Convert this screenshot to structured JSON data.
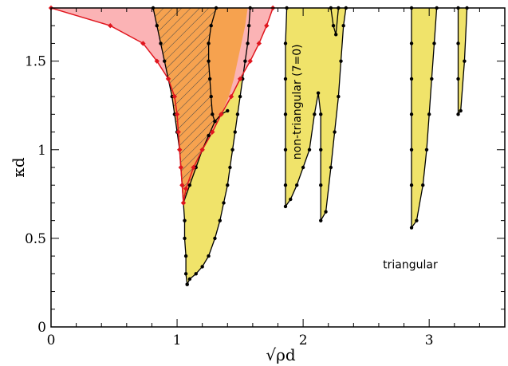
{
  "chart_data": {
    "type": "area",
    "xlabel": "√ρd",
    "ylabel": "κd",
    "xlim": [
      0,
      3.6
    ],
    "ylim": [
      0,
      1.8
    ],
    "x_ticks": [
      {
        "value": 0,
        "label": "0"
      },
      {
        "value": 1,
        "label": "1"
      },
      {
        "value": 2,
        "label": "2"
      },
      {
        "value": 3,
        "label": "3"
      }
    ],
    "y_ticks": [
      {
        "value": 0,
        "label": "0"
      },
      {
        "value": 0.5,
        "label": "0.5"
      },
      {
        "value": 1,
        "label": "1"
      },
      {
        "value": 1.5,
        "label": "1.5"
      }
    ],
    "x_minor_step": 0.2,
    "y_minor_step": 0.1,
    "grid": false,
    "colors": {
      "yellow": "#f0e36a",
      "orange": "#f6a24f",
      "pink": "#fbb3b5",
      "red": "#e0161e",
      "black": "#000000",
      "hatch": "#4a4a4a"
    },
    "annotations": [
      {
        "text": "non-triangular (7=0)",
        "x": 1.98,
        "y": 1.27,
        "rotation": -90
      },
      {
        "text": "triangular",
        "x": 2.85,
        "y": 0.33,
        "rotation": 0
      }
    ],
    "yellow_regions": [
      {
        "name": "lobe-1",
        "points": [
          [
            0.81,
            1.8
          ],
          [
            0.84,
            1.7
          ],
          [
            0.87,
            1.6
          ],
          [
            0.9,
            1.5
          ],
          [
            0.93,
            1.4
          ],
          [
            0.96,
            1.3
          ],
          [
            0.98,
            1.2
          ],
          [
            1.0,
            1.1
          ],
          [
            1.02,
            1.0
          ],
          [
            1.03,
            0.9
          ],
          [
            1.04,
            0.8
          ],
          [
            1.05,
            0.7
          ],
          [
            1.06,
            0.6
          ],
          [
            1.06,
            0.5
          ],
          [
            1.07,
            0.4
          ],
          [
            1.07,
            0.3
          ],
          [
            1.08,
            0.24
          ],
          [
            1.1,
            0.27
          ],
          [
            1.15,
            0.3
          ],
          [
            1.2,
            0.34
          ],
          [
            1.25,
            0.4
          ],
          [
            1.3,
            0.5
          ],
          [
            1.34,
            0.6
          ],
          [
            1.37,
            0.7
          ],
          [
            1.4,
            0.8
          ],
          [
            1.42,
            0.9
          ],
          [
            1.44,
            1.0
          ],
          [
            1.46,
            1.1
          ],
          [
            1.48,
            1.2
          ],
          [
            1.5,
            1.3
          ],
          [
            1.52,
            1.4
          ],
          [
            1.54,
            1.5
          ],
          [
            1.56,
            1.6
          ],
          [
            1.57,
            1.7
          ],
          [
            1.58,
            1.8
          ]
        ]
      },
      {
        "name": "lobe-2",
        "points": [
          [
            1.87,
            1.8
          ],
          [
            1.86,
            1.6
          ],
          [
            1.86,
            1.4
          ],
          [
            1.86,
            1.2
          ],
          [
            1.86,
            1.0
          ],
          [
            1.86,
            0.8
          ],
          [
            1.86,
            0.68
          ],
          [
            1.9,
            0.72
          ],
          [
            1.95,
            0.8
          ],
          [
            2.0,
            0.9
          ],
          [
            2.05,
            1.0
          ],
          [
            2.09,
            1.2
          ],
          [
            2.12,
            1.32
          ],
          [
            2.14,
            1.2
          ],
          [
            2.14,
            1.0
          ],
          [
            2.14,
            0.8
          ],
          [
            2.14,
            0.6
          ],
          [
            2.18,
            0.65
          ],
          [
            2.22,
            0.9
          ],
          [
            2.25,
            1.1
          ],
          [
            2.28,
            1.3
          ],
          [
            2.3,
            1.5
          ],
          [
            2.32,
            1.7
          ],
          [
            2.34,
            1.8
          ]
        ]
      },
      {
        "name": "lobe-3",
        "points": [
          [
            2.86,
            1.8
          ],
          [
            2.86,
            1.6
          ],
          [
            2.86,
            1.4
          ],
          [
            2.86,
            1.2
          ],
          [
            2.86,
            1.0
          ],
          [
            2.86,
            0.8
          ],
          [
            2.86,
            0.56
          ],
          [
            2.9,
            0.6
          ],
          [
            2.95,
            0.8
          ],
          [
            2.98,
            1.0
          ],
          [
            3.0,
            1.2
          ],
          [
            3.02,
            1.4
          ],
          [
            3.04,
            1.6
          ],
          [
            3.06,
            1.8
          ]
        ]
      },
      {
        "name": "lobe-4",
        "points": [
          [
            3.23,
            1.8
          ],
          [
            3.23,
            1.6
          ],
          [
            3.23,
            1.4
          ],
          [
            3.23,
            1.2
          ],
          [
            3.25,
            1.22
          ],
          [
            3.28,
            1.5
          ],
          [
            3.3,
            1.8
          ]
        ]
      }
    ],
    "orange_region": {
      "points": [
        [
          0.81,
          1.8
        ],
        [
          0.84,
          1.7
        ],
        [
          0.87,
          1.6
        ],
        [
          0.9,
          1.5
        ],
        [
          0.93,
          1.4
        ],
        [
          0.96,
          1.3
        ],
        [
          0.98,
          1.2
        ],
        [
          1.0,
          1.1
        ],
        [
          1.02,
          1.0
        ],
        [
          1.03,
          0.9
        ],
        [
          1.04,
          0.8
        ],
        [
          1.05,
          0.7
        ],
        [
          1.1,
          0.8
        ],
        [
          1.15,
          0.9
        ],
        [
          1.2,
          1.0
        ],
        [
          1.25,
          1.08
        ],
        [
          1.3,
          1.14
        ],
        [
          1.35,
          1.2
        ],
        [
          1.41,
          1.3
        ],
        [
          1.45,
          1.4
        ],
        [
          1.48,
          1.5
        ],
        [
          1.51,
          1.6
        ],
        [
          1.54,
          1.7
        ],
        [
          1.56,
          1.8
        ]
      ]
    },
    "hatch_region": {
      "points": [
        [
          0.81,
          1.8
        ],
        [
          0.84,
          1.7
        ],
        [
          0.87,
          1.6
        ],
        [
          0.9,
          1.5
        ],
        [
          0.93,
          1.4
        ],
        [
          0.96,
          1.3
        ],
        [
          0.98,
          1.2
        ],
        [
          1.0,
          1.1
        ],
        [
          1.02,
          1.0
        ],
        [
          1.03,
          0.9
        ],
        [
          1.04,
          0.8
        ],
        [
          1.05,
          0.7
        ],
        [
          1.1,
          0.8
        ],
        [
          1.15,
          0.9
        ],
        [
          1.2,
          1.0
        ],
        [
          1.25,
          1.08
        ],
        [
          1.3,
          1.16
        ],
        [
          1.28,
          1.2
        ],
        [
          1.27,
          1.3
        ],
        [
          1.26,
          1.4
        ],
        [
          1.25,
          1.5
        ],
        [
          1.25,
          1.6
        ],
        [
          1.27,
          1.7
        ],
        [
          1.31,
          1.8
        ]
      ]
    },
    "pink_region": {
      "points": [
        [
          0,
          1.8
        ],
        [
          0.47,
          1.7
        ],
        [
          0.73,
          1.6
        ],
        [
          0.84,
          1.5
        ],
        [
          0.93,
          1.4
        ],
        [
          0.98,
          1.3
        ],
        [
          1.0,
          1.2
        ],
        [
          1.01,
          1.1
        ],
        [
          1.02,
          1.0
        ],
        [
          1.03,
          0.9
        ],
        [
          1.04,
          0.8
        ],
        [
          1.05,
          0.7
        ],
        [
          1.07,
          0.78
        ],
        [
          1.13,
          0.9
        ],
        [
          1.2,
          1.0
        ],
        [
          1.28,
          1.1
        ],
        [
          1.35,
          1.2
        ],
        [
          1.43,
          1.3
        ],
        [
          1.5,
          1.4
        ],
        [
          1.58,
          1.5
        ],
        [
          1.65,
          1.6
        ],
        [
          1.71,
          1.7
        ],
        [
          1.76,
          1.8
        ]
      ]
    },
    "black_curves": [
      {
        "name": "lobe-1-left",
        "points": [
          [
            0.81,
            1.8
          ],
          [
            0.84,
            1.7
          ],
          [
            0.87,
            1.6
          ],
          [
            0.9,
            1.5
          ],
          [
            0.93,
            1.4
          ],
          [
            0.96,
            1.3
          ],
          [
            0.98,
            1.2
          ],
          [
            1.0,
            1.1
          ],
          [
            1.02,
            1.0
          ],
          [
            1.03,
            0.9
          ],
          [
            1.04,
            0.8
          ],
          [
            1.05,
            0.7
          ],
          [
            1.06,
            0.6
          ],
          [
            1.06,
            0.5
          ],
          [
            1.07,
            0.4
          ],
          [
            1.07,
            0.3
          ],
          [
            1.08,
            0.24
          ]
        ]
      },
      {
        "name": "lobe-1-right",
        "points": [
          [
            1.08,
            0.24
          ],
          [
            1.1,
            0.27
          ],
          [
            1.15,
            0.3
          ],
          [
            1.2,
            0.34
          ],
          [
            1.25,
            0.4
          ],
          [
            1.3,
            0.5
          ],
          [
            1.34,
            0.6
          ],
          [
            1.37,
            0.7
          ],
          [
            1.4,
            0.8
          ],
          [
            1.42,
            0.9
          ],
          [
            1.44,
            1.0
          ],
          [
            1.46,
            1.1
          ],
          [
            1.48,
            1.2
          ],
          [
            1.5,
            1.3
          ],
          [
            1.52,
            1.4
          ],
          [
            1.54,
            1.5
          ],
          [
            1.56,
            1.6
          ],
          [
            1.57,
            1.7
          ],
          [
            1.58,
            1.8
          ]
        ]
      },
      {
        "name": "inner-diagonal",
        "points": [
          [
            1.05,
            0.7
          ],
          [
            1.1,
            0.8
          ],
          [
            1.15,
            0.9
          ],
          [
            1.2,
            1.0
          ],
          [
            1.25,
            1.08
          ],
          [
            1.3,
            1.16
          ],
          [
            1.35,
            1.2
          ],
          [
            1.4,
            1.22
          ]
        ]
      },
      {
        "name": "inner-hook",
        "points": [
          [
            1.3,
            1.16
          ],
          [
            1.28,
            1.2
          ],
          [
            1.27,
            1.3
          ],
          [
            1.26,
            1.4
          ],
          [
            1.25,
            1.5
          ],
          [
            1.25,
            1.6
          ],
          [
            1.27,
            1.7
          ],
          [
            1.31,
            1.8
          ]
        ]
      },
      {
        "name": "lobe-2-curve",
        "points": [
          [
            1.87,
            1.8
          ],
          [
            1.86,
            1.6
          ],
          [
            1.86,
            1.4
          ],
          [
            1.86,
            1.2
          ],
          [
            1.86,
            1.0
          ],
          [
            1.86,
            0.8
          ],
          [
            1.86,
            0.68
          ],
          [
            1.9,
            0.72
          ],
          [
            1.95,
            0.8
          ],
          [
            2.0,
            0.9
          ],
          [
            2.05,
            1.0
          ],
          [
            2.09,
            1.2
          ],
          [
            2.12,
            1.32
          ],
          [
            2.14,
            1.2
          ],
          [
            2.14,
            1.0
          ],
          [
            2.14,
            0.8
          ],
          [
            2.14,
            0.6
          ],
          [
            2.18,
            0.65
          ],
          [
            2.22,
            0.9
          ],
          [
            2.25,
            1.1
          ],
          [
            2.28,
            1.3
          ],
          [
            2.3,
            1.5
          ],
          [
            2.32,
            1.7
          ],
          [
            2.34,
            1.8
          ]
        ]
      },
      {
        "name": "lobe-2-spike",
        "points": [
          [
            2.22,
            1.8
          ],
          [
            2.24,
            1.7
          ],
          [
            2.26,
            1.65
          ],
          [
            2.28,
            1.8
          ]
        ]
      },
      {
        "name": "lobe-3-curve",
        "points": [
          [
            2.86,
            1.8
          ],
          [
            2.86,
            1.6
          ],
          [
            2.86,
            1.4
          ],
          [
            2.86,
            1.2
          ],
          [
            2.86,
            1.0
          ],
          [
            2.86,
            0.8
          ],
          [
            2.86,
            0.56
          ],
          [
            2.9,
            0.6
          ],
          [
            2.95,
            0.8
          ],
          [
            2.98,
            1.0
          ],
          [
            3.0,
            1.2
          ],
          [
            3.02,
            1.4
          ],
          [
            3.04,
            1.6
          ],
          [
            3.06,
            1.8
          ]
        ]
      },
      {
        "name": "lobe-4-curve",
        "points": [
          [
            3.23,
            1.8
          ],
          [
            3.23,
            1.6
          ],
          [
            3.23,
            1.4
          ],
          [
            3.23,
            1.2
          ],
          [
            3.25,
            1.22
          ],
          [
            3.28,
            1.5
          ],
          [
            3.3,
            1.8
          ]
        ]
      }
    ],
    "red_curve": {
      "points": [
        [
          0,
          1.8
        ],
        [
          0.47,
          1.7
        ],
        [
          0.73,
          1.6
        ],
        [
          0.84,
          1.5
        ],
        [
          0.93,
          1.4
        ],
        [
          0.98,
          1.3
        ],
        [
          1.0,
          1.2
        ],
        [
          1.01,
          1.1
        ],
        [
          1.02,
          1.0
        ],
        [
          1.03,
          0.9
        ],
        [
          1.04,
          0.8
        ],
        [
          1.05,
          0.7
        ],
        [
          1.07,
          0.78
        ],
        [
          1.13,
          0.9
        ],
        [
          1.2,
          1.0
        ],
        [
          1.28,
          1.1
        ],
        [
          1.35,
          1.2
        ],
        [
          1.43,
          1.3
        ],
        [
          1.5,
          1.4
        ],
        [
          1.58,
          1.5
        ],
        [
          1.65,
          1.6
        ],
        [
          1.71,
          1.7
        ],
        [
          1.76,
          1.8
        ]
      ]
    }
  }
}
